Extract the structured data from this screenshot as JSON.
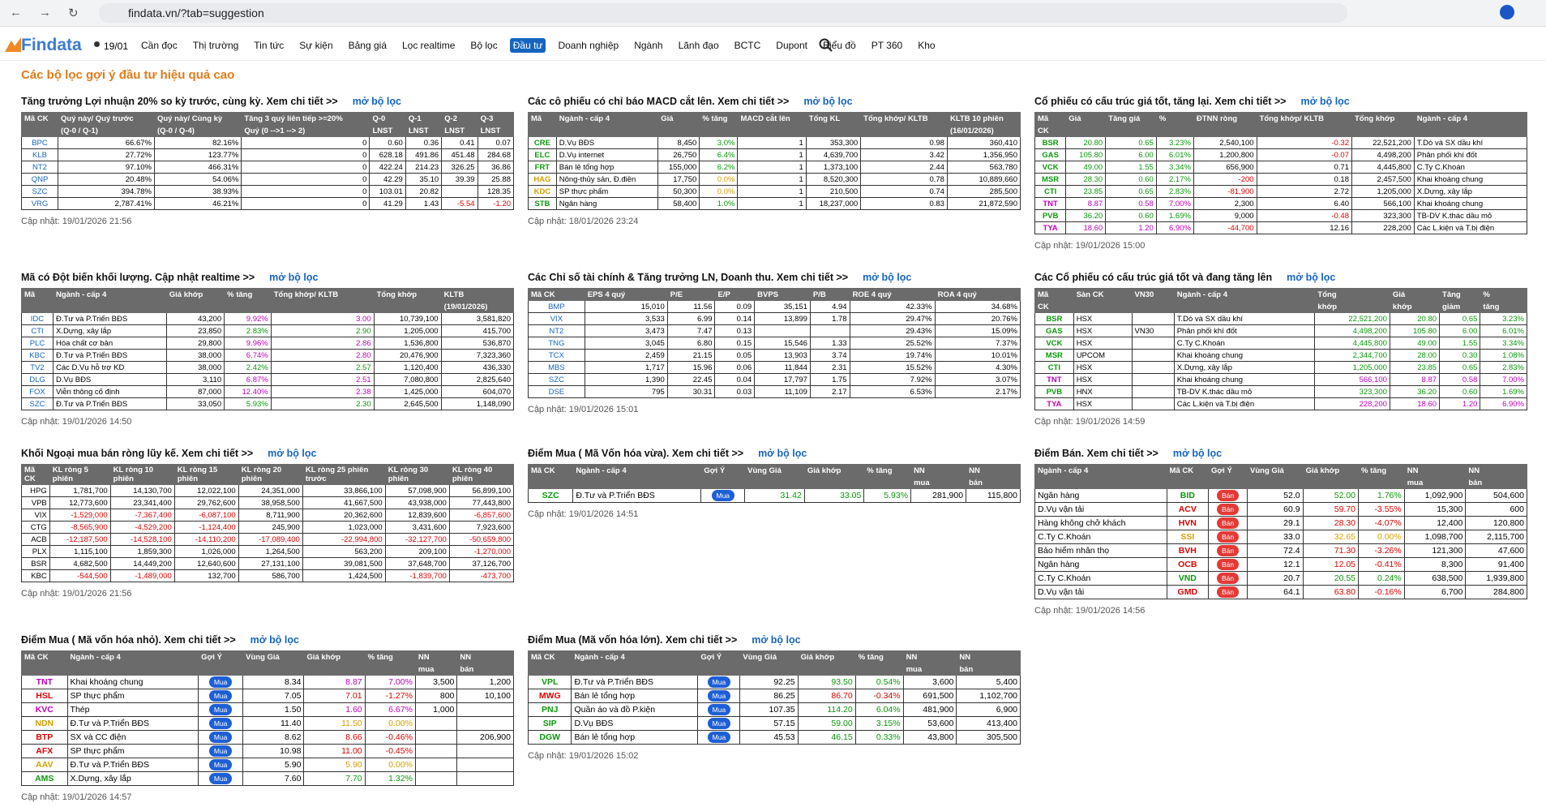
{
  "browser": {
    "url": "findata.vn/?tab=suggestion"
  },
  "nav": {
    "logo": "Findata",
    "date": "19/01",
    "items": [
      "Cần đọc",
      "Thị trường",
      "Tin tức",
      "Sự kiện",
      "Bảng giá",
      "Lọc realtime",
      "Bộ lọc",
      "Đầu tư",
      "Doanh nghiệp",
      "Ngành",
      "Lãnh đạo",
      "BCTC",
      "Dupont",
      "Biểu đồ",
      "PT 360",
      "Kho"
    ]
  },
  "page": {
    "title": "Các bộ lọc gợi ý đầu tư hiệu quả cao"
  },
  "panels": [
    {
      "title": "Tăng trưởng Lợi nhuận 20% so kỳ trước, cùng kỳ. Xem chi tiết >>",
      "link": "mở bộ lọc",
      "header": [
        [
          "Mã CK",
          "Quý này/ Quý trước",
          "Quý này/ Cùng kỳ",
          "Tăng 3 quý liên tiếp >=20%",
          "Q-0",
          "Q-1",
          "Q-2",
          "Q-3"
        ],
        [
          null,
          "(Q-0 / Q-1)",
          "(Q-0 / Q-4)",
          "Quý (0 -->1 --> 2)",
          "LNST",
          "LNST",
          "LNST",
          "LNST"
        ]
      ],
      "rows": [
        [
          "BPC",
          "66.67%",
          "82.16%",
          "0",
          "0.60",
          "0.36",
          "0.41",
          "0.07"
        ],
        [
          "KLB",
          "27.72%",
          "123.77%",
          "0",
          "628.18",
          "491.86",
          "451.48",
          "284.68"
        ],
        [
          "NT2",
          "97.10%",
          "466.31%",
          "0",
          "422.24",
          "214.23",
          "326.25",
          "36.86"
        ],
        [
          "QNP",
          "20.48%",
          "54.06%",
          "0",
          "42.29",
          "35.10",
          "39.39",
          "25.88"
        ],
        [
          "SZC",
          "394.78%",
          "38.93%",
          "0",
          "103.01",
          "20.82",
          null,
          "128.35"
        ],
        [
          "VRG",
          "2,787.41%",
          "46.21%",
          "0",
          "41.29",
          "1.43",
          "-5.54",
          "-1.20"
        ]
      ],
      "updated": "Cập nhật: 19/01/2026 21:56"
    },
    {
      "title": "Các cô phiếu có chỉ báo MACD cắt lên. Xem chi tiết >>",
      "link": "mở bộ lọc",
      "header": [
        [
          "Mã",
          "Ngành - cấp 4",
          "Giá",
          "% tăng",
          "MACD cắt lên",
          "Tổng KL",
          "Tổng khớp/ KLTB",
          "KLTB 10 phiên"
        ],
        [
          null,
          null,
          null,
          null,
          null,
          null,
          null,
          "(16/01/2026)"
        ]
      ],
      "rows": [
        [
          "CRE",
          "D.Vụ BĐS",
          "8,450",
          "3.0%",
          "1",
          "353,300",
          "0.98",
          "360,410"
        ],
        [
          "ELC",
          "D.Vụ internet",
          "26,750",
          "6.4%",
          "1",
          "4,639,700",
          "3.42",
          "1,356,950"
        ],
        [
          "FRT",
          "Bán lẻ tổng hợp",
          "155,000",
          "6.2%",
          "1",
          "1,373,100",
          "2.44",
          "563,780"
        ],
        [
          "HAG",
          "Nông-thủy sản, Đ.điền",
          "17,750",
          "0.0%",
          "1",
          "8,520,300",
          "0.78",
          "10,889,660"
        ],
        [
          "KDC",
          "SP thực phẩm",
          "50,300",
          "0.0%",
          "1",
          "210,500",
          "0.74",
          "285,500"
        ],
        [
          "STB",
          "Ngân hàng",
          "58,400",
          "1.0%",
          "1",
          "18,237,000",
          "0.83",
          "21,872,590"
        ]
      ],
      "updated": "Cập nhật: 18/01/2026 23:24"
    },
    {
      "title": "Cổ phiếu có cấu trúc giá tốt, tăng lại. Xem chi tiết >>",
      "link": "mở bộ lọc",
      "header": [
        [
          "Mã",
          "Giá",
          "Tăng giá",
          "%",
          "ĐTNN ròng",
          "Tổng khớp/ KLTB",
          "Tổng khớp",
          "Ngành - cấp 4"
        ],
        [
          "CK",
          null,
          null,
          null,
          null,
          null,
          null,
          null
        ]
      ],
      "rows": [
        [
          "BSR",
          "20.80",
          "0.65",
          "3.23%",
          "2,540,100",
          "-0.32",
          "22,521,200",
          "T.Dò và SX dầu khí"
        ],
        [
          "GAS",
          "105.80",
          "6.00",
          "6.01%",
          "1,200,800",
          "-0.07",
          "4,498,200",
          "Phân phối khí đốt"
        ],
        [
          "VCK",
          "49.00",
          "1.55",
          "3.34%",
          "656,900",
          "0.71",
          "4,445,800",
          "C.Ty C.Khoán"
        ],
        [
          "MSR",
          "28.30",
          "0.60",
          "2.17%",
          "-200",
          "0.18",
          "2,457,500",
          "Khai khoáng chung"
        ],
        [
          "CTI",
          "23.85",
          "0.65",
          "2.83%",
          "-81,900",
          "2.72",
          "1,205,000",
          "X.Dựng, xây lắp"
        ],
        [
          "TNT",
          "8.87",
          "0.58",
          "7.00%",
          "2,300",
          "6.40",
          "566,100",
          "Khai khoáng chung"
        ],
        [
          "PVB",
          "36.20",
          "0.60",
          "1.69%",
          "9,000",
          "-0.48",
          "323,300",
          "TB-DV K.thác dầu mỏ"
        ],
        [
          "TYA",
          "18.60",
          "1.20",
          "6.90%",
          "-44,700",
          "12.16",
          "228,200",
          "Các L.kiện và T.bị điện"
        ]
      ],
      "updated": "Cập nhật: 19/01/2026 15:00"
    },
    {
      "title": "Mã có Đột biến khối lượng. Cập nhật realtime >>",
      "link": "mở bộ lọc",
      "header": [
        [
          "Mã",
          "Ngành - cấp 4",
          "Giá khớp",
          "% tăng",
          "Tổng khớp/ KLTB",
          "Tổng khớp",
          "KLTB"
        ],
        [
          null,
          null,
          null,
          null,
          null,
          null,
          "(19/01/2026)"
        ]
      ],
      "rows": [
        [
          "IDC",
          "Đ.Tư và P.Triển BĐS",
          "43,200",
          "9.92%",
          "3.00",
          "10,739,100",
          "3,581,820"
        ],
        [
          "CTI",
          "X.Dựng, xây lắp",
          "23,850",
          "2.83%",
          "2.90",
          "1,205,000",
          "415,700"
        ],
        [
          "PLC",
          "Hóa chất cơ bản",
          "29,800",
          "9.96%",
          "2.86",
          "1,536,800",
          "536,870"
        ],
        [
          "KBC",
          "Đ.Tư và P.Triển BĐS",
          "38,000",
          "6.74%",
          "2.80",
          "20,476,900",
          "7,323,360"
        ],
        [
          "TV2",
          "Các D.Vụ hỗ trợ KD",
          "38,000",
          "2.42%",
          "2.57",
          "1,120,400",
          "436,330"
        ],
        [
          "DLG",
          "D.Vụ BĐS",
          "3,110",
          "6.87%",
          "2.51",
          "7,080,800",
          "2,825,640"
        ],
        [
          "FOX",
          "Viễn thông cố định",
          "87,000",
          "12.40%",
          "2.38",
          "1,425,000",
          "604,070"
        ],
        [
          "SZC",
          "Đ.Tư và P.Triển BĐS",
          "33,050",
          "5.93%",
          "2.30",
          "2,645,500",
          "1,148,090"
        ]
      ],
      "updated": "Cập nhật: 19/01/2026 14:50"
    },
    {
      "title": "Các Chỉ số tài chính & Tăng trưởng LN, Doanh thu. Xem chi tiết >>",
      "link": "mở bộ lọc",
      "header": [
        [
          "Mã CK",
          "EPS 4 quý",
          "P/E",
          "E/P",
          "BVPS",
          "P/B",
          "ROE 4 quý",
          "ROA 4 quý"
        ]
      ],
      "rows": [
        [
          "BMP",
          "15,010",
          "11.56",
          "0.09",
          "35,151",
          "4.94",
          "42.33%",
          "34.68%"
        ],
        [
          "VIX",
          "3,533",
          "6.99",
          "0.14",
          "13,899",
          "1.78",
          "29.47%",
          "20.76%"
        ],
        [
          "NT2",
          "3,473",
          "7.47",
          "0.13",
          null,
          null,
          "29.43%",
          "15.09%"
        ],
        [
          "TNG",
          "3,045",
          "6.80",
          "0.15",
          "15,546",
          "1.33",
          "25.52%",
          "7.37%"
        ],
        [
          "TCX",
          "2,459",
          "21.15",
          "0.05",
          "13,903",
          "3.74",
          "19.74%",
          "10.01%"
        ],
        [
          "MBS",
          "1,717",
          "15.96",
          "0.06",
          "11,844",
          "2.31",
          "15.52%",
          "4.30%"
        ],
        [
          "SZC",
          "1,390",
          "22.45",
          "0.04",
          "17,797",
          "1.75",
          "7.92%",
          "3.07%"
        ],
        [
          "DSE",
          "795",
          "30.31",
          "0.03",
          "11,109",
          "2.17",
          "6.53%",
          "2.17%"
        ]
      ],
      "updated": "Cập nhật: 19/01/2026 15:01"
    },
    {
      "title": "Các Cổ phiếu có cấu trúc giá tốt và đang tăng lên",
      "link": "mở bộ lọc",
      "header": [
        [
          "Mã",
          "Sàn CK",
          "VN30",
          "Ngành - cấp 4",
          "Tổng",
          "Giá",
          "Tăng",
          "%"
        ],
        [
          "CK",
          null,
          null,
          null,
          "khớp",
          "khớp",
          "giảm",
          "tăng"
        ]
      ],
      "rows": [
        [
          "BSR",
          "HSX",
          null,
          "T.Dò và SX dầu khí",
          "22,521,200",
          "20.80",
          "0.65",
          "3.23%"
        ],
        [
          "GAS",
          "HSX",
          "VN30",
          "Phân phối khí đốt",
          "4,498,200",
          "105.80",
          "6.00",
          "6.01%"
        ],
        [
          "VCK",
          "HSX",
          null,
          "C.Ty C.Khoán",
          "4,445,800",
          "49.00",
          "1.55",
          "3.34%"
        ],
        [
          "MSR",
          "UPCOM",
          null,
          "Khai khoáng chung",
          "2,344,700",
          "28.00",
          "0.30",
          "1.08%"
        ],
        [
          "CTI",
          "HSX",
          null,
          "X.Dựng, xây lắp",
          "1,205,000",
          "23.85",
          "0.65",
          "2.83%"
        ],
        [
          "TNT",
          "HSX",
          null,
          "Khai khoáng chung",
          "566,100",
          "8.87",
          "0.58",
          "7.00%"
        ],
        [
          "PVB",
          "HNX",
          null,
          "TB-DV K.thác dầu mỏ",
          "323,300",
          "36.20",
          "0.60",
          "1.69%"
        ],
        [
          "TYA",
          "HSX",
          null,
          "Các L.kiện và T.bị điện",
          "228,200",
          "18.60",
          "1.20",
          "6.90%"
        ]
      ],
      "updated": "Cập nhật: 19/01/2026 14:59"
    },
    {
      "title": "Khối Ngoại mua bán ròng lũy kế. Xem chi tiết >>",
      "link": "mở bộ lọc",
      "header": [
        [
          "Mã CK",
          "KL ròng 5 phiên",
          "KL ròng 10 phiên",
          "KL ròng 15 phiên",
          "KL ròng 20 phiên",
          "KL ròng 25 phiên trước",
          "KL ròng 30 phiên",
          "KL ròng 40 phiên"
        ]
      ],
      "rows": [
        [
          "HPG",
          "1,781,700",
          "14,130,700",
          "12,022,100",
          "24,351,000",
          "33,866,100",
          "57,098,900",
          "56,899,100"
        ],
        [
          "VPB",
          "12,773,600",
          "23,341,400",
          "29,762,600",
          "38,958,500",
          "41,667,500",
          "43,938,000",
          "77,443,800"
        ],
        [
          "VIX",
          "-1,529,000",
          "-7,367,400",
          "-6,087,100",
          "8,711,900",
          "20,362,600",
          "12,839,600",
          "-6,857,600"
        ],
        [
          "CTG",
          "-8,565,900",
          "-4,529,200",
          "-1,124,400",
          "245,900",
          "1,023,000",
          "3,431,600",
          "7,923,600"
        ],
        [
          "ACB",
          "-12,187,500",
          "-14,528,100",
          "-14,110,200",
          "-17,089,400",
          "-22,994,800",
          "-32,127,700",
          "-50,659,800"
        ],
        [
          "PLX",
          "1,115,100",
          "1,859,300",
          "1,026,000",
          "1,264,500",
          "563,200",
          "209,100",
          "-1,270,000"
        ],
        [
          "BSR",
          "4,682,500",
          "14,449,200",
          "12,640,600",
          "27,131,100",
          "39,081,500",
          "37,648,700",
          "37,126,700"
        ],
        [
          "KBC",
          "-544,500",
          "-1,489,000",
          "132,700",
          "586,700",
          "1,424,500",
          "-1,839,700",
          "-473,700"
        ]
      ],
      "updated": "Cập nhật: 19/01/2026 21:56"
    },
    {
      "title": "Điểm Mua ( Mã Vốn hóa vừa). Xem chi tiết >>",
      "link": "mở bộ lọc",
      "header": [
        [
          "Mã CK",
          "Ngành - cấp 4",
          "Gợi Ý",
          "Vùng Giá",
          "Giá khớp",
          "% tăng",
          "NN",
          "NN"
        ],
        [
          null,
          null,
          null,
          null,
          null,
          null,
          "mua",
          "bán"
        ]
      ],
      "rows": [
        [
          "SZC",
          "Đ.Tư và P.Triển BĐS",
          "Mua",
          "31.42",
          "33.05",
          "5.93%",
          "281,900",
          "115,800"
        ]
      ],
      "updated": "Cập nhật: 19/01/2026 14:51"
    },
    {
      "title": "Điểm Bán. Xem chi tiết >>",
      "link": "mở bộ lọc",
      "header": [
        [
          "Ngành - cấp 4",
          "Mã CK",
          "Gợi Ý",
          "Vùng Giá",
          "Giá khớp",
          "% tăng",
          "NN",
          "NN"
        ],
        [
          null,
          null,
          null,
          null,
          null,
          null,
          "mua",
          "bán"
        ]
      ],
      "rows": [
        [
          "Ngân hàng",
          "BID",
          "Bán",
          "52.0",
          "52.00",
          "1.76%",
          "1,092,900",
          "504,600"
        ],
        [
          "D.Vụ vận tải",
          "ACV",
          "Bán",
          "60.9",
          "59.70",
          "-3.55%",
          "15,300",
          "600"
        ],
        [
          "Hàng không chở khách",
          "HVN",
          "Bán",
          "29.1",
          "28.30",
          "-4.07%",
          "12,400",
          "120,800"
        ],
        [
          "C.Ty C.Khoán",
          "SSI",
          "Bán",
          "33.0",
          "32.65",
          "0.00%",
          "1,098,700",
          "2,115,700"
        ],
        [
          "Bảo hiểm nhân thọ",
          "BVH",
          "Bán",
          "72.4",
          "71.30",
          "-3.26%",
          "121,300",
          "47,600"
        ],
        [
          "Ngân hàng",
          "OCB",
          "Bán",
          "12.1",
          "12.05",
          "-0.41%",
          "8,300",
          "91,400"
        ],
        [
          "C.Ty C.Khoán",
          "VND",
          "Bán",
          "20.7",
          "20.55",
          "0.24%",
          "638,500",
          "1,939,800"
        ],
        [
          "D.Vụ vận tải",
          "GMD",
          "Bán",
          "64.1",
          "63.80",
          "-0.16%",
          "6,700",
          "284,800"
        ]
      ],
      "updated": "Cập nhật: 19/01/2026 14:56"
    },
    {
      "title": "Điểm Mua ( Mã vốn hóa nhỏ). Xem chi tiết >>",
      "link": "mở bộ lọc",
      "header": [
        [
          "Mã CK",
          "Ngành - cấp 4",
          "Gợi Ý",
          "Vùng Giá",
          "Giá khớp",
          "% tăng",
          "NN",
          "NN"
        ],
        [
          null,
          null,
          null,
          null,
          null,
          null,
          "mua",
          "bán"
        ]
      ],
      "rows": [
        [
          "TNT",
          "Khai khoáng chung",
          "Mua",
          "8.34",
          "8.87",
          "7.00%",
          "3,500",
          "1,200"
        ],
        [
          "HSL",
          "SP thực phẩm",
          "Mua",
          "7.05",
          "7.01",
          "-1.27%",
          "800",
          "10,100"
        ],
        [
          "KVC",
          "Thép",
          "Mua",
          "1.50",
          "1.60",
          "6.67%",
          "1,000",
          null
        ],
        [
          "NDN",
          "Đ.Tư và P.Triển BĐS",
          "Mua",
          "11.40",
          "11.50",
          "0.00%",
          null,
          null
        ],
        [
          "BTP",
          "SX và CC điện",
          "Mua",
          "8.62",
          "8.66",
          "-0.46%",
          null,
          "206,900"
        ],
        [
          "AFX",
          "SP thực phẩm",
          "Mua",
          "10.98",
          "11.00",
          "-0.45%",
          null,
          null
        ],
        [
          "AAV",
          "Đ.Tư và P.Triển BĐS",
          "Mua",
          "5.90",
          "5.90",
          "0.00%",
          null,
          null
        ],
        [
          "AMS",
          "X.Dựng, xây lắp",
          "Mua",
          "7.60",
          "7.70",
          "1.32%",
          null,
          null
        ]
      ],
      "updated": "Cập nhật: 19/01/2026 14:57"
    },
    {
      "title": "Điểm Mua (Mã vốn hóa lớn). Xem chi tiết >>",
      "link": "mở bộ lọc",
      "header": [
        [
          "Mã CK",
          "Ngành - cấp 4",
          "Gợi Ý",
          "Vùng Giá",
          "Giá khớp",
          "% tăng",
          "NN",
          "NN"
        ],
        [
          null,
          null,
          null,
          null,
          null,
          null,
          "mua",
          "bán"
        ]
      ],
      "rows": [
        [
          "VPL",
          "Đ.Tư và P.Triển BĐS",
          "Mua",
          "92.25",
          "93.50",
          "0.54%",
          "3,600",
          "5,400"
        ],
        [
          "MWG",
          "Bán lẻ tổng hợp",
          "Mua",
          "86.25",
          "86.70",
          "-0.34%",
          "691,500",
          "1,102,700"
        ],
        [
          "PNJ",
          "Quần áo và đồ P.kiện",
          "Mua",
          "107.35",
          "114.20",
          "6.04%",
          "481,900",
          "6,900"
        ],
        [
          "SIP",
          "D.Vụ BĐS",
          "Mua",
          "57.15",
          "59.00",
          "3.15%",
          "53,600",
          "413,400"
        ],
        [
          "DGW",
          "Bán lẻ tổng hợp",
          "Mua",
          "45.53",
          "46.15",
          "0.33%",
          "43,800",
          "305,500"
        ]
      ],
      "updated": "Cập nhật: 19/01/2026 15:02"
    }
  ]
}
